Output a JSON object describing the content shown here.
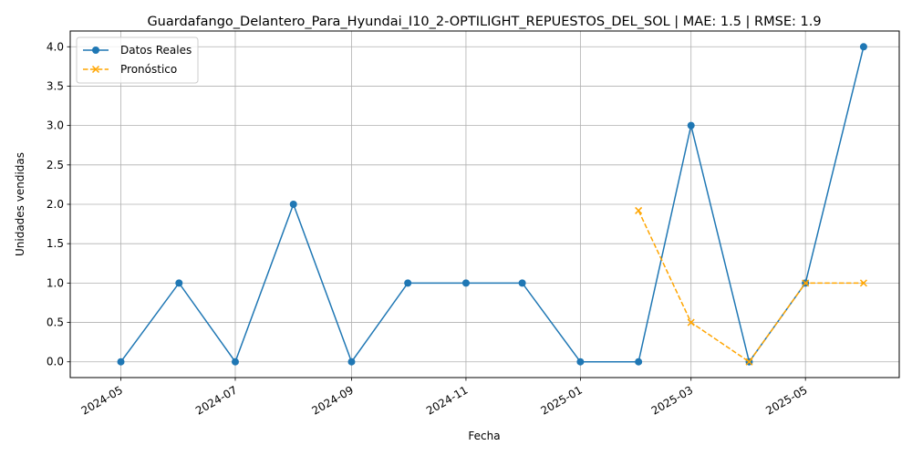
{
  "chart_data": {
    "type": "line",
    "title": "Guardafango_Delantero_Para_Hyundai_I10_2-OPTILIGHT_REPUESTOS_DEL_SOL | MAE: 1.5 | RMSE: 1.9",
    "xlabel": "Fecha",
    "ylabel": "Unidades vendidas",
    "ylim": [
      -0.2,
      4.2
    ],
    "yticks": [
      0.0,
      0.5,
      1.0,
      1.5,
      2.0,
      2.5,
      3.0,
      3.5,
      4.0
    ],
    "ytick_labels": [
      "0.0",
      "0.5",
      "1.0",
      "1.5",
      "2.0",
      "2.5",
      "3.0",
      "3.5",
      "4.0"
    ],
    "xlim": [
      "2024-04-04",
      "2025-06-20"
    ],
    "xticks": [
      "2024-05-01",
      "2024-07-01",
      "2024-09-01",
      "2024-11-01",
      "2025-01-01",
      "2025-03-01",
      "2025-05-01"
    ],
    "xtick_labels": [
      "2024-05",
      "2024-07",
      "2024-09",
      "2024-11",
      "2025-01",
      "2025-03",
      "2025-05"
    ],
    "grid": true,
    "legend_position": "top-left",
    "series": [
      {
        "name": "Datos Reales",
        "color": "#1f77b4",
        "style": "solid",
        "marker": "circle",
        "x": [
          "2024-05-01",
          "2024-06-01",
          "2024-07-01",
          "2024-08-01",
          "2024-09-01",
          "2024-10-01",
          "2024-11-01",
          "2024-12-01",
          "2025-01-01",
          "2025-02-01",
          "2025-03-01",
          "2025-04-01",
          "2025-05-01",
          "2025-06-01"
        ],
        "values": [
          0,
          1,
          0,
          2,
          0,
          1,
          1,
          1,
          0,
          0,
          3,
          0,
          1,
          4
        ]
      },
      {
        "name": "Pronóstico",
        "color": "#ffa500",
        "style": "dashed",
        "marker": "x",
        "x": [
          "2025-02-01",
          "2025-03-01",
          "2025-04-01",
          "2025-05-01",
          "2025-06-01"
        ],
        "values": [
          1.92,
          0.5,
          0.0,
          1.0,
          1.0
        ]
      }
    ]
  }
}
